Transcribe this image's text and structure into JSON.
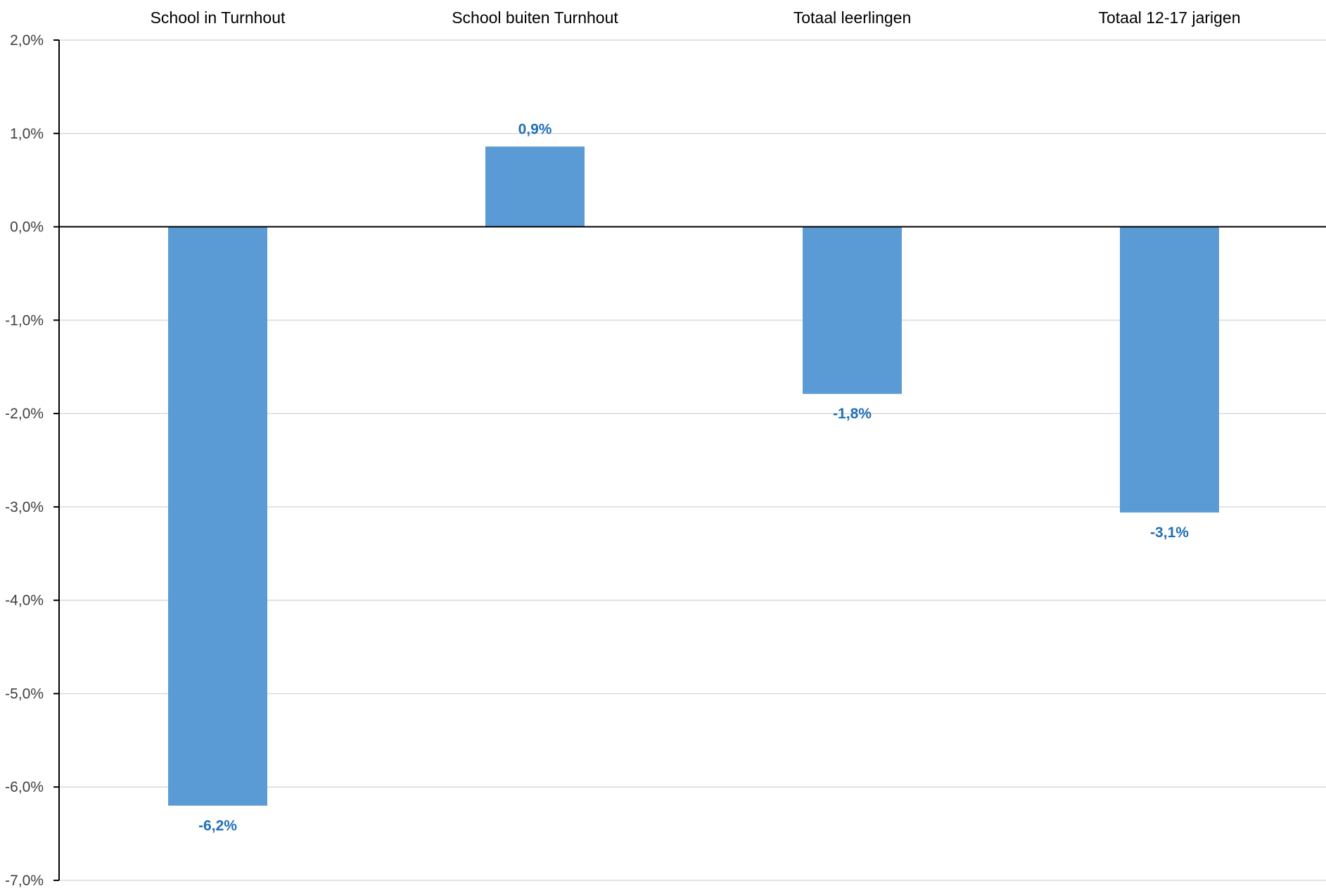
{
  "chart_data": {
    "type": "bar",
    "title": "",
    "xlabel": "",
    "ylabel": "",
    "categories": [
      "School in Turnhout",
      "School buiten Turnhout",
      "Totaal leerlingen",
      "Totaal 12-17 jarigen"
    ],
    "values": [
      -6.2,
      0.86,
      -1.79,
      -3.06
    ],
    "data_labels": [
      "-6,2%",
      "0,9%",
      "-1,8%",
      "-3,1%"
    ],
    "ylim": [
      -7.0,
      2.0
    ],
    "yticks": [
      2.0,
      1.0,
      0.0,
      -1.0,
      -2.0,
      -3.0,
      -4.0,
      -5.0,
      -6.0,
      -7.0
    ],
    "ytick_labels": [
      "2,0%",
      "1,0%",
      "0,0%",
      "-1,0%",
      "-2,0%",
      "-3,0%",
      "-4,0%",
      "-5,0%",
      "-6,0%",
      "-7,0%"
    ],
    "category_labels_position": "top",
    "grid": true,
    "legend": "none",
    "colors": {
      "bar": "#5b9bd5",
      "data_label": "#1f6fb8",
      "grid": "#d9d9d9",
      "axis": "#000000"
    }
  }
}
